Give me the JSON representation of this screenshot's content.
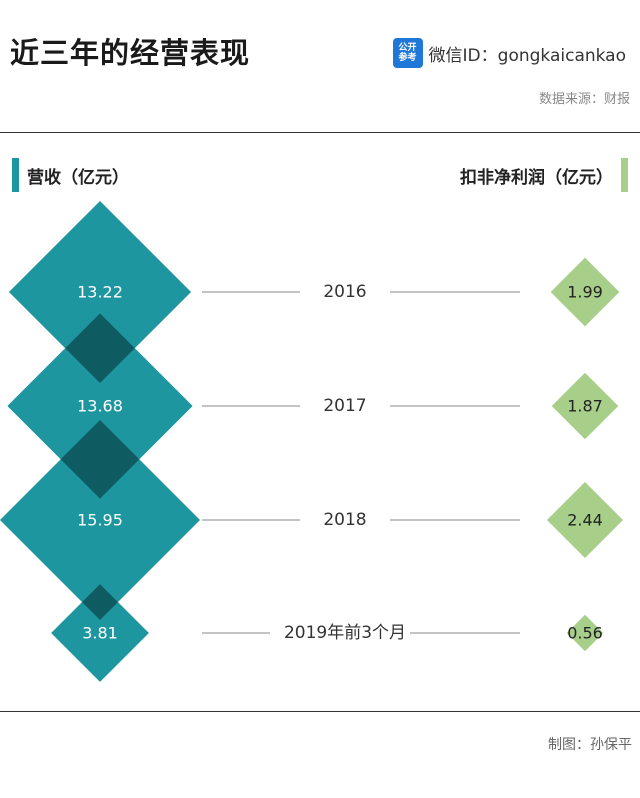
{
  "title": "近三年的经营表现",
  "wechat": {
    "logo_top": "公开",
    "logo_bottom": "参考",
    "label": "微信ID：gongkaicankao"
  },
  "source": "数据来源：财报",
  "maker": "制图：孙保平",
  "colors": {
    "revenue": "#1e969f",
    "revenue_overlap": "#0f5b62",
    "profit": "#a7cf8a",
    "line": "#888888"
  },
  "chart_data": {
    "type": "diamond",
    "categories": [
      "2016",
      "2017",
      "2018",
      "2019年前3个月"
    ],
    "series": [
      {
        "name": "营收（亿元）",
        "values": [
          13.22,
          13.68,
          15.95,
          3.81
        ]
      },
      {
        "name": "扣非净利润（亿元）",
        "values": [
          1.99,
          1.87,
          2.44,
          0.56
        ]
      }
    ],
    "legend": [
      "营收（亿元）",
      "扣非净利润（亿元）"
    ]
  }
}
